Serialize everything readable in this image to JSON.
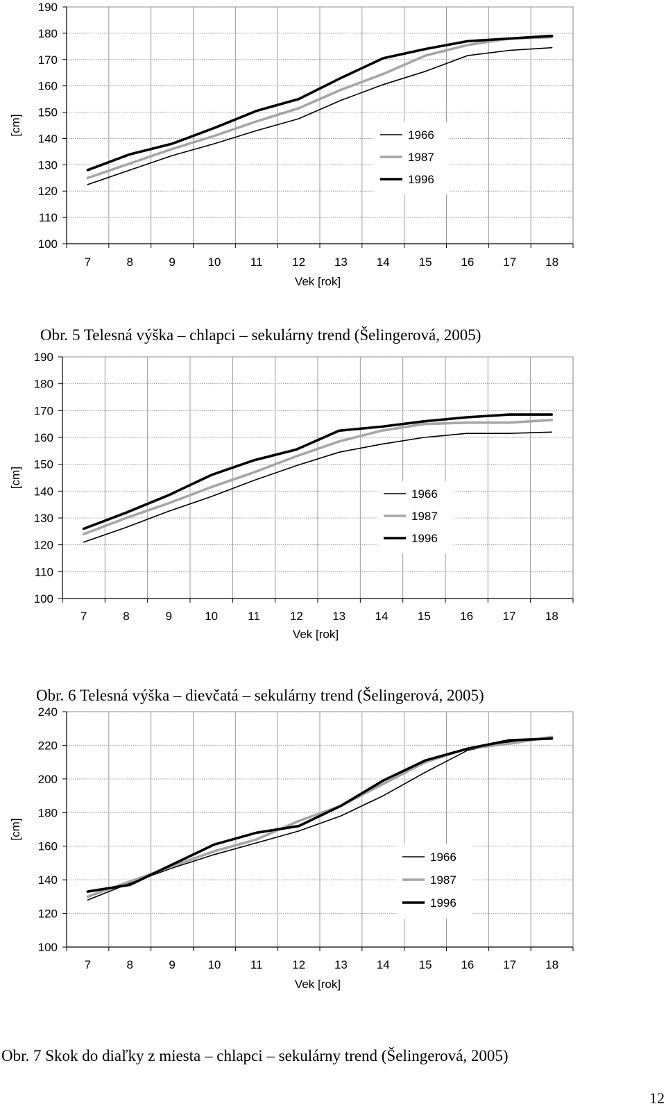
{
  "chart_data": [
    {
      "type": "line",
      "xlabel": "Vek [rok]",
      "ylabel": "[cm]",
      "x": [
        7,
        8,
        9,
        10,
        11,
        12,
        13,
        14,
        15,
        16,
        17,
        18
      ],
      "ylim": [
        100,
        190
      ],
      "yticks": [
        100,
        110,
        120,
        130,
        140,
        150,
        160,
        170,
        180,
        190
      ],
      "grid": true,
      "legend_position": "center-right",
      "series": [
        {
          "name": "1966",
          "color": "#000000",
          "style": "thin",
          "values": [
            122.5,
            128,
            133.5,
            138,
            143,
            147.5,
            154.5,
            160.5,
            165.5,
            171.5,
            173.5,
            174.5
          ]
        },
        {
          "name": "1987",
          "color": "#a6a6a6",
          "style": "thick",
          "values": [
            125,
            130.5,
            136,
            141,
            146.5,
            151.5,
            158.5,
            164.5,
            171.5,
            175.5,
            178,
            178.5
          ]
        },
        {
          "name": "1996",
          "color": "#000000",
          "style": "thick",
          "values": [
            128,
            134,
            138,
            144,
            150.5,
            155,
            163,
            170.5,
            174,
            177,
            178,
            179
          ]
        }
      ]
    },
    {
      "type": "line",
      "xlabel": "Vek [rok]",
      "ylabel": "[cm]",
      "x": [
        7,
        8,
        9,
        10,
        11,
        12,
        13,
        14,
        15,
        16,
        17,
        18
      ],
      "ylim": [
        100,
        190
      ],
      "yticks": [
        100,
        110,
        120,
        130,
        140,
        150,
        160,
        170,
        180,
        190
      ],
      "grid": true,
      "legend_position": "center-right",
      "series": [
        {
          "name": "1966",
          "color": "#000000",
          "style": "thin",
          "values": [
            121,
            126.5,
            132.5,
            138,
            144,
            149.5,
            154.5,
            157.5,
            160,
            161.5,
            161.5,
            162
          ]
        },
        {
          "name": "1987",
          "color": "#a6a6a6",
          "style": "thick",
          "values": [
            124,
            130,
            135.5,
            141.5,
            147,
            153,
            158.5,
            162.5,
            165,
            165.5,
            165.5,
            166.5
          ]
        },
        {
          "name": "1996",
          "color": "#000000",
          "style": "thick",
          "values": [
            126,
            132,
            138.5,
            146,
            151.5,
            155.5,
            162.5,
            164,
            166,
            167.5,
            168.5,
            168.5
          ]
        }
      ]
    },
    {
      "type": "line",
      "xlabel": "Vek [rok]",
      "ylabel": "[cm]",
      "x": [
        7,
        8,
        9,
        10,
        11,
        12,
        13,
        14,
        15,
        16,
        17,
        18
      ],
      "ylim": [
        100,
        240
      ],
      "yticks": [
        100,
        120,
        140,
        160,
        180,
        200,
        220,
        240
      ],
      "grid": true,
      "legend_position": "center-right",
      "series": [
        {
          "name": "1966",
          "color": "#000000",
          "style": "thin",
          "values": [
            128,
            138,
            147,
            155,
            162,
            169,
            178,
            190,
            204,
            217,
            222,
            224
          ]
        },
        {
          "name": "1987",
          "color": "#a6a6a6",
          "style": "thick",
          "values": [
            130,
            139,
            148,
            157,
            164,
            175,
            184,
            197,
            210,
            218,
            221,
            225
          ]
        },
        {
          "name": "1996",
          "color": "#000000",
          "style": "thick",
          "values": [
            133,
            137,
            149,
            161,
            168,
            172,
            184,
            199,
            211,
            218,
            223,
            224
          ]
        }
      ]
    }
  ],
  "captions": [
    "Obr. 5 Telesná výška – chlapci – sekulárny trend (Šelingerová, 2005)",
    "Obr. 6 Telesná výška – dievčatá – sekulárny trend (Šelingerová, 2005)",
    "Obr. 7 Skok do diaľky z miesta – chlapci – sekulárny trend (Šelingerová, 2005)"
  ],
  "page_number": "12"
}
